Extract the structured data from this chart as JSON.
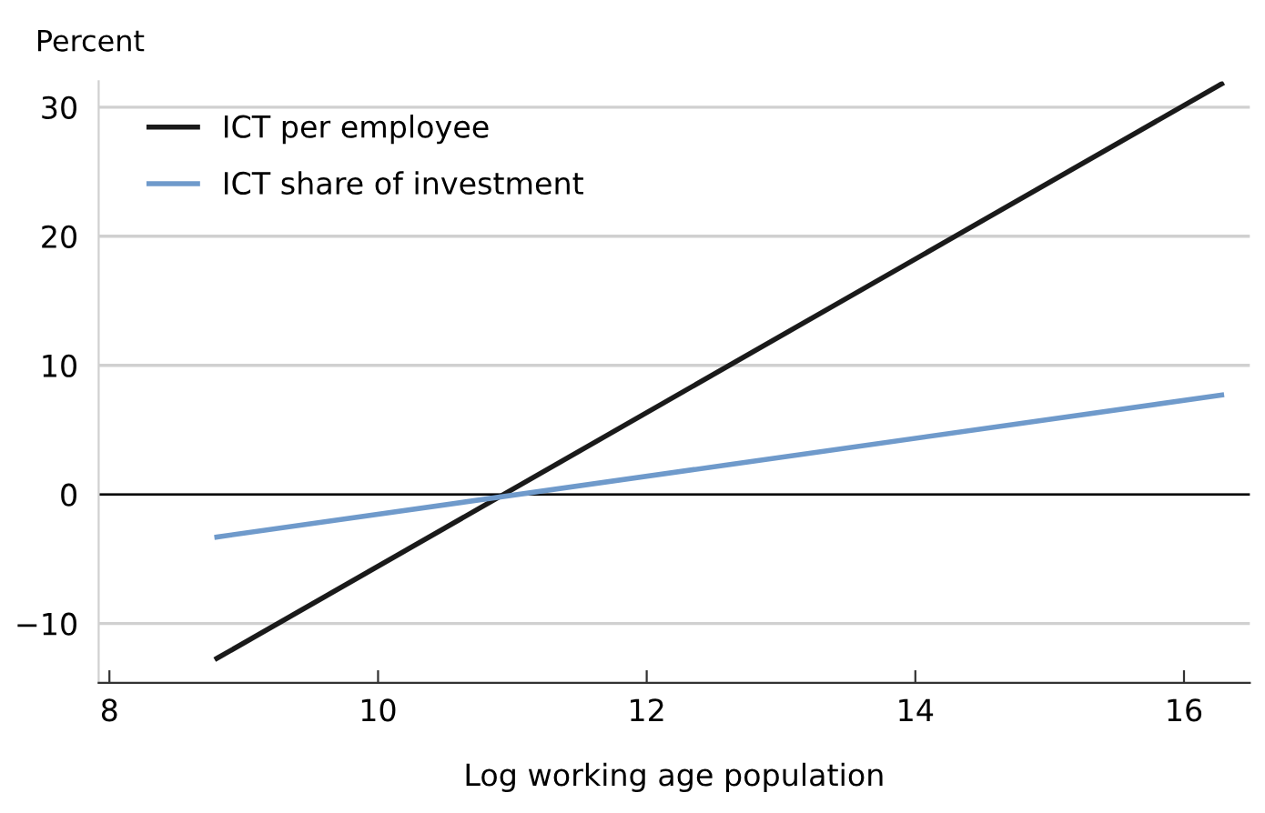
{
  "chart_data": {
    "type": "line",
    "ylabel": "Percent",
    "xlabel": "Log working age population",
    "series": [
      {
        "name": "ICT per employee",
        "color": "#1a1a1a",
        "values": [
          -12.7,
          31.8
        ]
      },
      {
        "name": "ICT share of investment",
        "color": "#6f9acb",
        "values": [
          -3.3,
          7.7
        ]
      }
    ],
    "x": [
      8.8,
      16.28
    ],
    "xlim": [
      7.92,
      16.49
    ],
    "xticks": [
      8,
      10,
      12,
      14,
      16
    ],
    "ylim": [
      -14.6,
      32
    ],
    "yticks": [
      -10,
      0,
      10,
      20,
      30
    ],
    "ref_lines": [
      {
        "axis": "y",
        "value": 0,
        "color": "#000000"
      }
    ],
    "grid": "y",
    "legend": "top left",
    "marker": "none",
    "line_style": "solid"
  }
}
